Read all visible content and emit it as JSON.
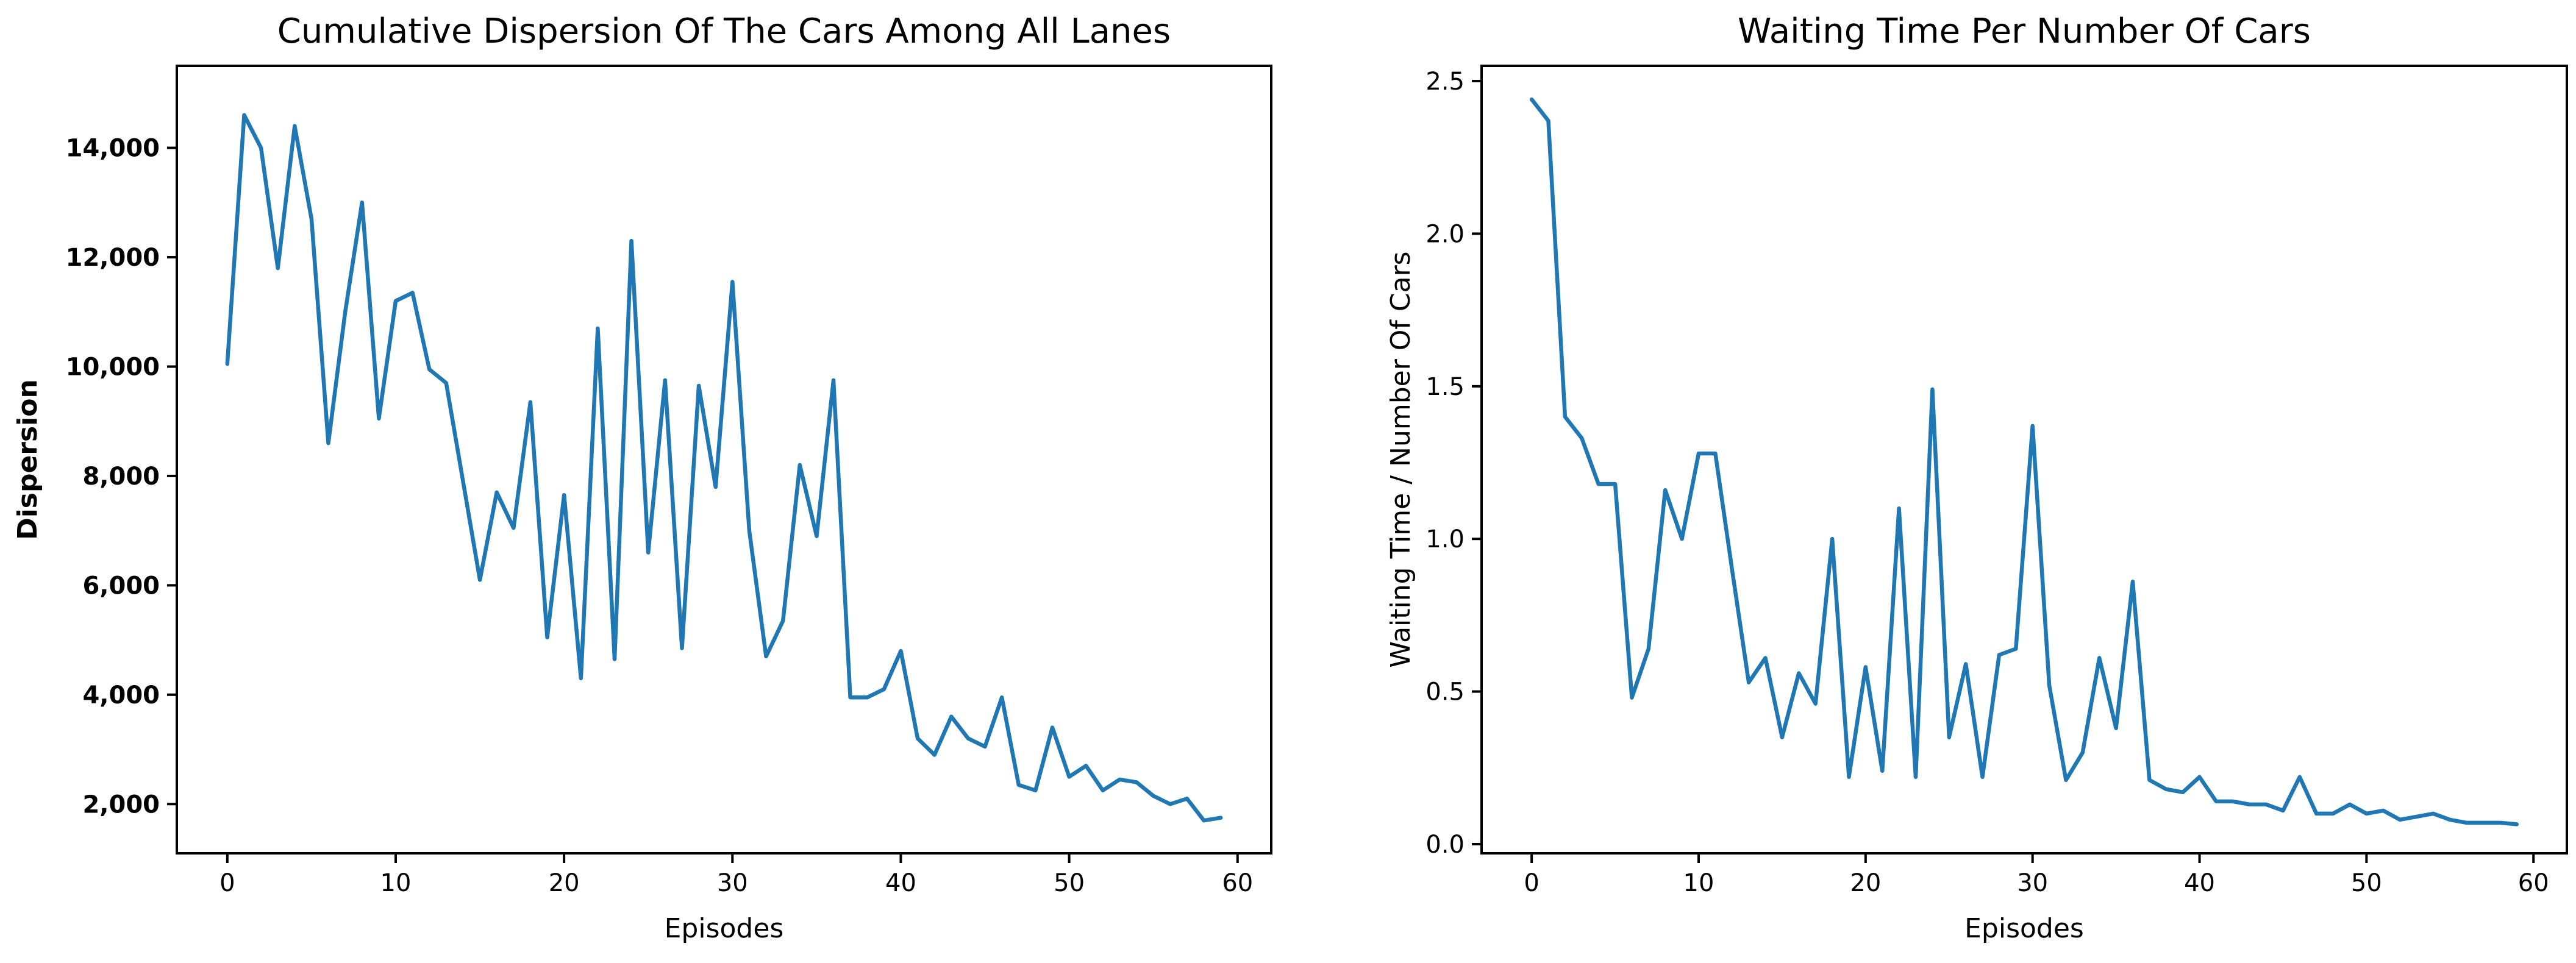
{
  "chart_data": [
    {
      "type": "line",
      "title": "Cumulative Dispersion Of The Cars Among All Lanes",
      "xlabel": "Episodes",
      "ylabel": "Dispersion",
      "xlim": [
        -3,
        62
      ],
      "ylim": [
        1100,
        15500
      ],
      "xticks": [
        0,
        10,
        20,
        30,
        40,
        50,
        60
      ],
      "xtick_labels": [
        "0",
        "10",
        "20",
        "30",
        "40",
        "50",
        "60"
      ],
      "yticks": [
        2000,
        4000,
        6000,
        8000,
        10000,
        12000,
        14000
      ],
      "ytick_labels": [
        "2,000",
        "4,000",
        "6,000",
        "8,000",
        "10,000",
        "12,000",
        "14,000"
      ],
      "series": [
        {
          "name": "Dispersion",
          "color": "#1f77b4",
          "x": [
            0,
            1,
            2,
            3,
            4,
            5,
            6,
            7,
            8,
            9,
            10,
            11,
            12,
            13,
            14,
            15,
            16,
            17,
            18,
            19,
            20,
            21,
            22,
            23,
            24,
            25,
            26,
            27,
            28,
            29,
            30,
            31,
            32,
            33,
            34,
            35,
            36,
            37,
            38,
            39,
            40,
            41,
            42,
            43,
            44,
            45,
            46,
            47,
            48,
            49,
            50,
            51,
            52,
            53,
            54,
            55,
            56,
            57,
            58,
            59
          ],
          "values": [
            10050,
            14600,
            14000,
            11800,
            14400,
            12700,
            8600,
            11000,
            13000,
            9050,
            11200,
            11350,
            9950,
            9700,
            7900,
            6100,
            7700,
            7050,
            9350,
            5050,
            7650,
            4300,
            10700,
            4650,
            12300,
            6600,
            9750,
            4850,
            9650,
            7800,
            11550,
            7000,
            4700,
            5350,
            8200,
            6900,
            9750,
            3950,
            3950,
            4100,
            4800,
            3200,
            2900,
            3600,
            3200,
            3050,
            3950,
            2350,
            2250,
            3400,
            2500,
            2700,
            2250,
            2450,
            2400,
            2150,
            2000,
            2100,
            1700,
            1750
          ]
        }
      ]
    },
    {
      "type": "line",
      "title": "Waiting Time Per Number Of Cars",
      "xlabel": "Episodes",
      "ylabel": "Waiting Time / Number Of Cars",
      "xlim": [
        -3,
        62
      ],
      "ylim": [
        -0.03,
        2.55
      ],
      "xticks": [
        0,
        10,
        20,
        30,
        40,
        50,
        60
      ],
      "xtick_labels": [
        "0",
        "10",
        "20",
        "30",
        "40",
        "50",
        "60"
      ],
      "yticks": [
        0.0,
        0.5,
        1.0,
        1.5,
        2.0,
        2.5
      ],
      "ytick_labels": [
        "0.0",
        "0.5",
        "1.0",
        "1.5",
        "2.0",
        "2.5"
      ],
      "series": [
        {
          "name": "Waiting Time / Number Of Cars",
          "color": "#1f77b4",
          "x": [
            0,
            1,
            2,
            3,
            4,
            5,
            6,
            7,
            8,
            9,
            10,
            11,
            12,
            13,
            14,
            15,
            16,
            17,
            18,
            19,
            20,
            21,
            22,
            23,
            24,
            25,
            26,
            27,
            28,
            29,
            30,
            31,
            32,
            33,
            34,
            35,
            36,
            37,
            38,
            39,
            40,
            41,
            42,
            43,
            44,
            45,
            46,
            47,
            48,
            49,
            50,
            51,
            52,
            53,
            54,
            55,
            56,
            57,
            58,
            59
          ],
          "values": [
            2.44,
            2.37,
            1.4,
            1.33,
            1.18,
            1.18,
            0.48,
            0.64,
            1.16,
            1.0,
            1.28,
            1.28,
            0.9,
            0.53,
            0.61,
            0.35,
            0.56,
            0.46,
            1.0,
            0.22,
            0.58,
            0.24,
            1.1,
            0.22,
            1.49,
            0.35,
            0.59,
            0.22,
            0.62,
            0.64,
            1.37,
            0.52,
            0.21,
            0.3,
            0.61,
            0.38,
            0.86,
            0.21,
            0.18,
            0.17,
            0.22,
            0.14,
            0.14,
            0.13,
            0.13,
            0.11,
            0.22,
            0.1,
            0.1,
            0.13,
            0.1,
            0.11,
            0.08,
            0.09,
            0.1,
            0.08,
            0.07,
            0.07,
            0.07,
            0.065
          ]
        }
      ]
    }
  ]
}
